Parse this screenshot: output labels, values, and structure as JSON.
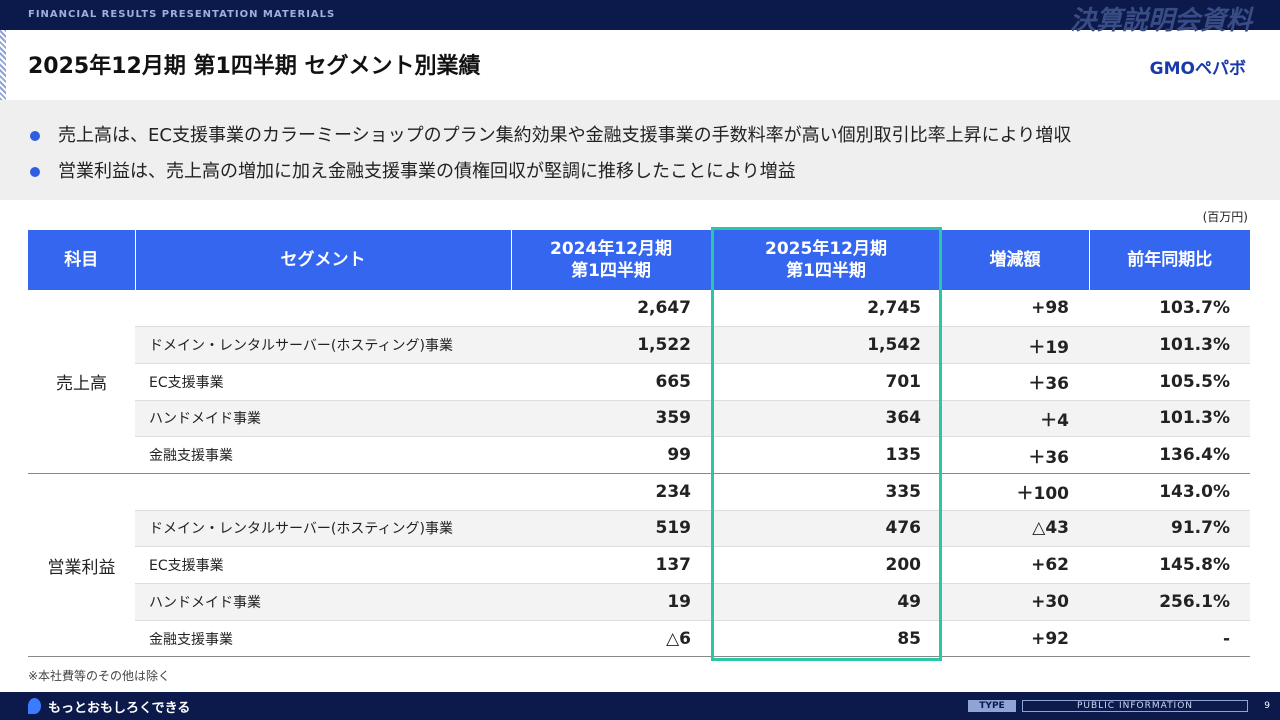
{
  "header": {
    "banner": "FINANCIAL RESULTS PRESENTATION MATERIALS",
    "banner_jp": "決算説明会資料",
    "title": "2025年12月期 第1四半期 セグメント別業績",
    "logo": "GMOペパボ"
  },
  "bullets": [
    "売上高は、EC支援事業のカラーミーショップのプラン集約効果や金融支援事業の手数料率が高い個別取引比率上昇により増収",
    "営業利益は、売上高の増加に加え金融支援事業の債権回収が堅調に推移したことにより増益"
  ],
  "unit": "(百万円)",
  "table": {
    "columns": [
      [
        "科目"
      ],
      [
        "セグメント"
      ],
      [
        "2024年12月期",
        "第1四半期"
      ],
      [
        "2025年12月期",
        "第1四半期"
      ],
      [
        "増減額"
      ],
      [
        "前年同期比"
      ]
    ],
    "groups": [
      {
        "label": "売上高",
        "total": [
          "2,647",
          "2,745",
          "+98",
          "103.7%"
        ],
        "rows": [
          {
            "segment": "ドメイン・レンタルサーバー(ホスティング)事業",
            "values": [
              "1,522",
              "1,542",
              "＋19",
              "101.3%"
            ]
          },
          {
            "segment": "EC支援事業",
            "values": [
              "665",
              "701",
              "＋36",
              "105.5%"
            ]
          },
          {
            "segment": "ハンドメイド事業",
            "values": [
              "359",
              "364",
              "＋4",
              "101.3%"
            ]
          },
          {
            "segment": "金融支援事業",
            "values": [
              "99",
              "135",
              "＋36",
              "136.4%"
            ]
          }
        ]
      },
      {
        "label": "営業利益",
        "total": [
          "234",
          "335",
          "＋100",
          "143.0%"
        ],
        "rows": [
          {
            "segment": "ドメイン・レンタルサーバー(ホスティング)事業",
            "values": [
              "519",
              "476",
              "△43",
              "91.7%"
            ]
          },
          {
            "segment": "EC支援事業",
            "values": [
              "137",
              "200",
              "+62",
              "145.8%"
            ]
          },
          {
            "segment": "ハンドメイド事業",
            "values": [
              "19",
              "49",
              "+30",
              "256.1%"
            ]
          },
          {
            "segment": "金融支援事業",
            "values": [
              "△6",
              "85",
              "+92",
              "-"
            ]
          }
        ]
      }
    ]
  },
  "footnote": "※本社費等のその他は除く",
  "footer": {
    "tagline": "もっとおもしろくできる",
    "type": "TYPE",
    "classification": "PUBLIC INFORMATION",
    "page": "9"
  }
}
